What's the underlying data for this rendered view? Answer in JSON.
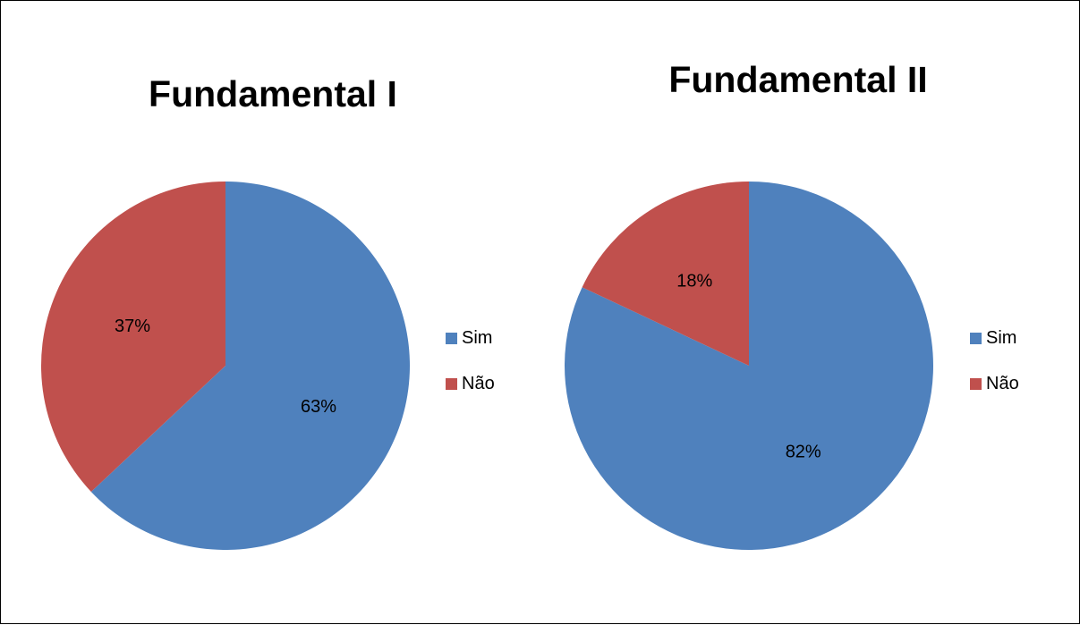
{
  "chart_data": [
    {
      "type": "pie",
      "title": "Fundamental I",
      "categories": [
        "Sim",
        "Não"
      ],
      "values": [
        63,
        37
      ],
      "labels": [
        "63%",
        "37%"
      ],
      "colors": [
        "#4F81BD",
        "#C0504D"
      ],
      "legend": "right"
    },
    {
      "type": "pie",
      "title": "Fundamental II",
      "categories": [
        "Sim",
        "Não"
      ],
      "values": [
        82,
        18
      ],
      "labels": [
        "82%",
        "18%"
      ],
      "colors": [
        "#4F81BD",
        "#C0504D"
      ],
      "legend": "right"
    }
  ]
}
